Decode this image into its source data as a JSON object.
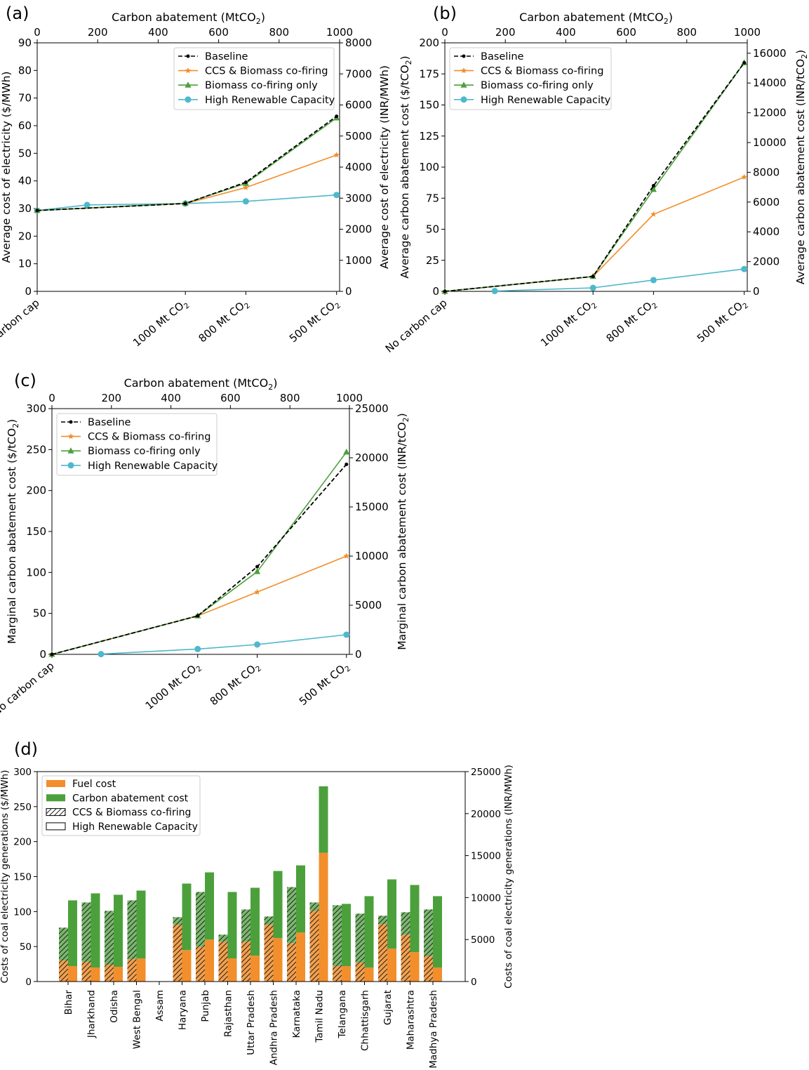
{
  "figure": {
    "panels": [
      {
        "label": "(a)",
        "xlabel_top": "Carbon abatement (MtCO",
        "xlabel_top_sub": "2",
        "xlabel_top_tail": ")",
        "top_ticks": [
          0,
          200,
          400,
          600,
          800,
          1000
        ],
        "ylabel_left": "Average cost of electricity ($/MWh)",
        "ylabel_right": "Average cost of electricity (INR/MWh)",
        "left_ticks": [
          0,
          10,
          20,
          30,
          40,
          50,
          60,
          70,
          80,
          90
        ],
        "right_ticks": [
          0,
          1000,
          2000,
          3000,
          4000,
          5000,
          6000,
          7000,
          8000
        ]
      },
      {
        "label": "(b)",
        "xlabel_top": "Carbon abatement (MtCO",
        "xlabel_top_sub": "2",
        "xlabel_top_tail": ")",
        "top_ticks": [
          0,
          200,
          400,
          600,
          800,
          1000
        ],
        "ylabel_left": "Average carbon abatement cost ($/tCO2)",
        "ylabel_right": "Average carbon abatement cost (INR/tCO2)",
        "left_ticks": [
          0,
          25,
          50,
          75,
          100,
          125,
          150,
          175,
          200
        ],
        "right_ticks": [
          0,
          2000,
          4000,
          6000,
          8000,
          10000,
          12000,
          14000,
          16000
        ]
      },
      {
        "label": "(c)",
        "xlabel_top": "Carbon abatement (MtCO",
        "xlabel_top_sub": "2",
        "xlabel_top_tail": ")",
        "top_ticks": [
          0,
          200,
          400,
          600,
          800,
          1000
        ],
        "ylabel_left": "Marginal carbon abatement cost ($/tCO2)",
        "ylabel_right": "Marginal carbon abatement cost (INR/tCO2)",
        "left_ticks": [
          0,
          50,
          100,
          150,
          200,
          250,
          300
        ],
        "right_ticks": [
          0,
          5000,
          10000,
          15000,
          20000,
          25000
        ]
      },
      {
        "label": "(d)",
        "ylabel_left": "Costs of coal electricity generations ($/MWh)",
        "ylabel_right": "Costs of coal electricity generations (INR/MWh)",
        "left_ticks": [
          0,
          50,
          100,
          150,
          200,
          250,
          300
        ],
        "right_ticks": [
          0,
          5000,
          10000,
          15000,
          20000,
          25000
        ]
      }
    ],
    "scenario_ticks": [
      "No carbon cap",
      "1000 Mt CO2",
      "800 Mt CO2",
      "500 Mt CO2"
    ],
    "legend_lines": [
      "Baseline",
      "CCS & Biomass co-firing",
      "Biomass co-firing only",
      "High Renewable Capacity"
    ],
    "legend_bars": [
      "Fuel cost",
      "Carbon abatement cost",
      "CCS & Biomass co-firing",
      "High Renewable Capacity"
    ]
  },
  "chart_data": [
    {
      "type": "line",
      "panel": "a",
      "title": "",
      "xlabel": "Carbon abatement (MtCO2)",
      "ylabel": "Average cost of electricity ($/MWh)",
      "ylabel_right": "Average cost of electricity (INR/MWh)",
      "xlim": [
        0,
        1000
      ],
      "ylim": [
        0,
        90
      ],
      "ylim_right": [
        0,
        8000
      ],
      "scenario_positions": [
        {
          "label": "No carbon cap",
          "x": 0
        },
        {
          "label": "1000 Mt CO2",
          "x": 490
        },
        {
          "label": "800 Mt CO2",
          "x": 690
        },
        {
          "label": "500 Mt CO2",
          "x": 990
        }
      ],
      "series": [
        {
          "name": "Baseline",
          "color": "#000000",
          "x": [
            0,
            490,
            690,
            990
          ],
          "values": [
            29.3,
            31.8,
            39.5,
            63.4
          ]
        },
        {
          "name": "CCS & Biomass co-firing",
          "color": "#f28e2b",
          "x": [
            0,
            490,
            690,
            990
          ],
          "values": [
            29.3,
            31.8,
            37.6,
            49.4
          ]
        },
        {
          "name": "Biomass co-firing only",
          "color": "#4ca03c",
          "x": [
            0,
            490,
            690,
            990
          ],
          "values": [
            29.3,
            31.9,
            39.1,
            62.8
          ]
        },
        {
          "name": "High Renewable Capacity",
          "color": "#4eb8cc",
          "x": [
            0,
            165,
            490,
            690,
            990
          ],
          "values": [
            29.3,
            31.3,
            31.8,
            32.6,
            34.9
          ]
        }
      ]
    },
    {
      "type": "line",
      "panel": "b",
      "title": "",
      "xlabel": "Carbon abatement (MtCO2)",
      "ylabel": "Average carbon abatement cost ($/tCO2)",
      "ylabel_right": "Average carbon abatement cost (INR/tCO2)",
      "xlim": [
        0,
        1000
      ],
      "ylim": [
        0,
        200
      ],
      "ylim_right": [
        0,
        16700
      ],
      "scenario_positions": [
        {
          "label": "No carbon cap",
          "x": 0
        },
        {
          "label": "1000 Mt CO2",
          "x": 490
        },
        {
          "label": "800 Mt CO2",
          "x": 690
        },
        {
          "label": "500 Mt CO2",
          "x": 990
        }
      ],
      "series": [
        {
          "name": "Baseline",
          "color": "#000000",
          "x": [
            0,
            490,
            690,
            990
          ],
          "values": [
            0,
            12.0,
            85.0,
            184.0
          ]
        },
        {
          "name": "CCS & Biomass co-firing",
          "color": "#f28e2b",
          "x": [
            0,
            490,
            690,
            990
          ],
          "values": [
            0,
            12.0,
            62.0,
            92.0
          ]
        },
        {
          "name": "Biomass co-firing only",
          "color": "#4ca03c",
          "x": [
            0,
            490,
            690,
            990
          ],
          "values": [
            0,
            12.0,
            82.0,
            184.0
          ]
        },
        {
          "name": "High Renewable Capacity",
          "color": "#4eb8cc",
          "x": [
            165,
            490,
            690,
            990
          ],
          "values": [
            0.3,
            2.8,
            9.1,
            18.0
          ]
        }
      ]
    },
    {
      "type": "line",
      "panel": "c",
      "title": "",
      "xlabel": "Carbon abatement (MtCO2)",
      "ylabel": "Marginal carbon abatement cost ($/tCO2)",
      "ylabel_right": "Marginal carbon abatement cost (INR/tCO2)",
      "xlim": [
        0,
        1000
      ],
      "ylim": [
        0,
        300
      ],
      "ylim_right": [
        0,
        25000
      ],
      "scenario_positions": [
        {
          "label": "No carbon cap",
          "x": 0
        },
        {
          "label": "1000 Mt CO2",
          "x": 490
        },
        {
          "label": "800 Mt CO2",
          "x": 690
        },
        {
          "label": "500 Mt CO2",
          "x": 990
        }
      ],
      "series": [
        {
          "name": "Baseline",
          "color": "#000000",
          "x": [
            0,
            490,
            690,
            990
          ],
          "values": [
            0,
            47,
            107,
            232
          ]
        },
        {
          "name": "CCS & Biomass co-firing",
          "color": "#f28e2b",
          "x": [
            0,
            490,
            690,
            990
          ],
          "values": [
            0,
            47,
            76,
            120
          ]
        },
        {
          "name": "Biomass co-firing only",
          "color": "#4ca03c",
          "x": [
            0,
            490,
            690,
            990
          ],
          "values": [
            0,
            47,
            101,
            247
          ]
        },
        {
          "name": "High Renewable Capacity",
          "color": "#4eb8cc",
          "x": [
            165,
            490,
            690,
            990
          ],
          "values": [
            0.3,
            6.5,
            12.0,
            24.0
          ]
        }
      ]
    },
    {
      "type": "bar",
      "panel": "d",
      "title": "",
      "xlabel": "",
      "ylabel": "Costs of coal electricity generations ($/MWh)",
      "ylabel_right": "Costs of coal electricity generations (INR/MWh)",
      "ylim": [
        0,
        300
      ],
      "ylim_right": [
        0,
        25000
      ],
      "categories": [
        "Bihar",
        "Jharkhand",
        "Odisha",
        "West Bengal",
        "Assam",
        "Haryana",
        "Punjab",
        "Rajasthan",
        "Uttar Pradesh",
        "Andhra Pradesh",
        "Karnataka",
        "Tamil Nadu",
        "Telangana",
        "Chhattisgarh",
        "Gujarat",
        "Maharashtra",
        "Madhya Pradesh"
      ],
      "series": [
        {
          "name": "Fuel cost (CCS & Biomass co-firing)",
          "color": "#f28e2b",
          "hatch": true,
          "values": [
            30,
            28,
            24,
            32,
            0,
            81,
            50,
            57,
            57,
            81,
            55,
            101,
            22,
            27,
            82,
            67,
            36
          ]
        },
        {
          "name": "Carbon abatement cost (CCS & Biomass co-firing)",
          "color": "#4ca03c",
          "hatch": true,
          "values": [
            47,
            85,
            77,
            84,
            0,
            11,
            78,
            10,
            46,
            12,
            80,
            12,
            87,
            70,
            12,
            32,
            67
          ]
        },
        {
          "name": "Fuel cost (High Renewable Capacity)",
          "color": "#f28e2b",
          "hatch": false,
          "values": [
            22,
            20,
            21,
            33,
            0,
            45,
            60,
            33,
            37,
            62,
            70,
            184,
            22,
            20,
            47,
            42,
            20
          ]
        },
        {
          "name": "Carbon abatement cost (High Renewable Capacity)",
          "color": "#4ca03c",
          "hatch": false,
          "values": [
            94,
            106,
            103,
            97,
            0,
            95,
            96,
            95,
            97,
            96,
            96,
            95,
            89,
            102,
            99,
            96,
            102
          ]
        }
      ]
    }
  ]
}
